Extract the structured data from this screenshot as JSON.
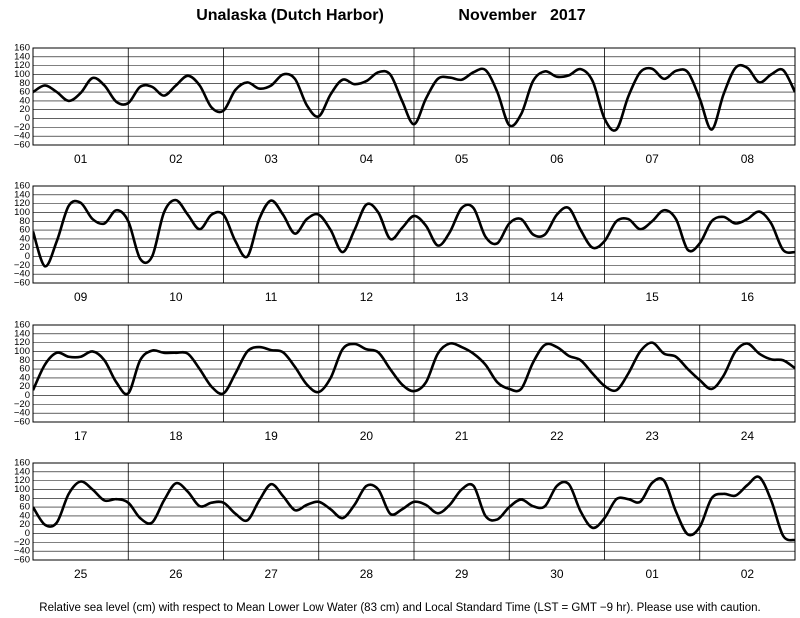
{
  "title": "Unalaska (Dutch Harbor)",
  "period": "November   2017",
  "footnote": "Relative sea level (cm) with respect to Mean Lower Low Water (83 cm) and Local Standard Time (LST = GMT −9 hr). Please use with caution.",
  "chart_data": [
    {
      "type": "line",
      "color": "#000000",
      "grid": true,
      "xlim": [
        0,
        192
      ],
      "ylim": [
        -60,
        160
      ],
      "yticks": [
        {
          "value": -60,
          "label": "−60"
        },
        {
          "value": -40,
          "label": "−40"
        },
        {
          "value": -20,
          "label": "−20"
        },
        0,
        20,
        40,
        60,
        80,
        100,
        120,
        140,
        160
      ],
      "xticks": [
        {
          "value": 12,
          "label": "01"
        },
        {
          "value": 36,
          "label": "02"
        },
        {
          "value": 60,
          "label": "03"
        },
        {
          "value": 84,
          "label": "04"
        },
        {
          "value": 108,
          "label": "05"
        },
        {
          "value": 132,
          "label": "06"
        },
        {
          "value": 156,
          "label": "07"
        },
        {
          "value": 180,
          "label": "08"
        }
      ],
      "x": [
        0,
        3,
        6,
        9,
        12,
        15,
        18,
        21,
        24,
        27,
        30,
        33,
        36,
        39,
        42,
        45,
        48,
        51,
        54,
        57,
        60,
        63,
        66,
        69,
        72,
        75,
        78,
        81,
        84,
        87,
        90,
        93,
        96,
        99,
        102,
        105,
        108,
        111,
        114,
        117,
        120,
        123,
        126,
        129,
        132,
        135,
        138,
        141,
        144,
        147,
        150,
        153,
        156,
        159,
        162,
        165,
        168,
        171,
        174,
        177,
        180,
        183,
        186,
        189,
        192
      ],
      "values": [
        60,
        75,
        60,
        40,
        58,
        92,
        75,
        38,
        35,
        72,
        72,
        52,
        75,
        97,
        75,
        25,
        18,
        65,
        82,
        68,
        75,
        100,
        90,
        30,
        5,
        55,
        88,
        78,
        85,
        105,
        100,
        40,
        -13,
        45,
        90,
        93,
        88,
        105,
        110,
        60,
        -15,
        10,
        85,
        107,
        95,
        98,
        112,
        85,
        0,
        -25,
        50,
        105,
        113,
        90,
        108,
        105,
        45,
        -25,
        55,
        115,
        115,
        82,
        100,
        110,
        60
      ]
    },
    {
      "type": "line",
      "color": "#000000",
      "grid": true,
      "xlim": [
        0,
        192
      ],
      "ylim": [
        -60,
        160
      ],
      "yticks": [
        {
          "value": -60,
          "label": "−60"
        },
        {
          "value": -40,
          "label": "−40"
        },
        {
          "value": -20,
          "label": "−20"
        },
        0,
        20,
        40,
        60,
        80,
        100,
        120,
        140,
        160
      ],
      "xticks": [
        {
          "value": 12,
          "label": "09"
        },
        {
          "value": 36,
          "label": "10"
        },
        {
          "value": 60,
          "label": "11"
        },
        {
          "value": 84,
          "label": "12"
        },
        {
          "value": 108,
          "label": "13"
        },
        {
          "value": 132,
          "label": "14"
        },
        {
          "value": 156,
          "label": "15"
        },
        {
          "value": 180,
          "label": "16"
        }
      ],
      "x": [
        0,
        3,
        6,
        9,
        12,
        15,
        18,
        21,
        24,
        27,
        30,
        33,
        36,
        39,
        42,
        45,
        48,
        51,
        54,
        57,
        60,
        63,
        66,
        69,
        72,
        75,
        78,
        81,
        84,
        87,
        90,
        93,
        96,
        99,
        102,
        105,
        108,
        111,
        114,
        117,
        120,
        123,
        126,
        129,
        132,
        135,
        138,
        141,
        144,
        147,
        150,
        153,
        156,
        159,
        162,
        165,
        168,
        171,
        174,
        177,
        180,
        183,
        186,
        189,
        192
      ],
      "values": [
        57,
        -22,
        35,
        115,
        122,
        85,
        75,
        105,
        80,
        -5,
        0,
        100,
        128,
        95,
        62,
        95,
        95,
        35,
        0,
        85,
        127,
        95,
        52,
        85,
        95,
        60,
        10,
        60,
        118,
        100,
        40,
        65,
        92,
        70,
        25,
        55,
        110,
        110,
        45,
        30,
        75,
        85,
        50,
        50,
        95,
        110,
        60,
        20,
        35,
        80,
        85,
        62,
        80,
        105,
        85,
        15,
        30,
        80,
        90,
        75,
        85,
        102,
        75,
        15,
        10
      ]
    },
    {
      "type": "line",
      "color": "#000000",
      "grid": true,
      "xlim": [
        0,
        192
      ],
      "ylim": [
        -60,
        160
      ],
      "yticks": [
        {
          "value": -60,
          "label": "−60"
        },
        {
          "value": -40,
          "label": "−40"
        },
        {
          "value": -20,
          "label": "−20"
        },
        0,
        20,
        40,
        60,
        80,
        100,
        120,
        140,
        160
      ],
      "xticks": [
        {
          "value": 12,
          "label": "17"
        },
        {
          "value": 36,
          "label": "18"
        },
        {
          "value": 60,
          "label": "19"
        },
        {
          "value": 84,
          "label": "20"
        },
        {
          "value": 108,
          "label": "21"
        },
        {
          "value": 132,
          "label": "22"
        },
        {
          "value": 156,
          "label": "23"
        },
        {
          "value": 180,
          "label": "24"
        }
      ],
      "x": [
        0,
        3,
        6,
        9,
        12,
        15,
        18,
        21,
        24,
        27,
        30,
        33,
        36,
        39,
        42,
        45,
        48,
        51,
        54,
        57,
        60,
        63,
        66,
        69,
        72,
        75,
        78,
        81,
        84,
        87,
        90,
        93,
        96,
        99,
        102,
        105,
        108,
        111,
        114,
        117,
        120,
        123,
        126,
        129,
        132,
        135,
        138,
        141,
        144,
        147,
        150,
        153,
        156,
        159,
        162,
        165,
        168,
        171,
        174,
        177,
        180,
        183,
        186,
        189,
        192
      ],
      "values": [
        12,
        70,
        97,
        88,
        88,
        100,
        80,
        30,
        5,
        80,
        102,
        97,
        97,
        95,
        60,
        20,
        5,
        50,
        100,
        110,
        103,
        98,
        65,
        25,
        8,
        40,
        105,
        117,
        105,
        98,
        60,
        25,
        10,
        30,
        95,
        118,
        110,
        95,
        70,
        30,
        15,
        15,
        75,
        115,
        110,
        90,
        80,
        50,
        22,
        12,
        50,
        100,
        120,
        95,
        88,
        60,
        35,
        15,
        45,
        100,
        118,
        95,
        82,
        80,
        62
      ]
    },
    {
      "type": "line",
      "color": "#000000",
      "grid": true,
      "xlim": [
        0,
        192
      ],
      "ylim": [
        -60,
        160
      ],
      "yticks": [
        {
          "value": -60,
          "label": "−60"
        },
        {
          "value": -40,
          "label": "−40"
        },
        {
          "value": -20,
          "label": "−20"
        },
        0,
        20,
        40,
        60,
        80,
        100,
        120,
        140,
        160
      ],
      "xticks": [
        {
          "value": 12,
          "label": "25"
        },
        {
          "value": 36,
          "label": "26"
        },
        {
          "value": 60,
          "label": "27"
        },
        {
          "value": 84,
          "label": "28"
        },
        {
          "value": 108,
          "label": "29"
        },
        {
          "value": 132,
          "label": "30"
        },
        {
          "value": 156,
          "label": "01"
        },
        {
          "value": 180,
          "label": "02"
        }
      ],
      "x": [
        0,
        3,
        6,
        9,
        12,
        15,
        18,
        21,
        24,
        27,
        30,
        33,
        36,
        39,
        42,
        45,
        48,
        51,
        54,
        57,
        60,
        63,
        66,
        69,
        72,
        75,
        78,
        81,
        84,
        87,
        90,
        93,
        96,
        99,
        102,
        105,
        108,
        111,
        114,
        117,
        120,
        123,
        126,
        129,
        132,
        135,
        138,
        141,
        144,
        147,
        150,
        153,
        156,
        159,
        162,
        165,
        168,
        171,
        174,
        177,
        180,
        183,
        186,
        189,
        192
      ],
      "values": [
        60,
        20,
        25,
        90,
        118,
        100,
        75,
        78,
        70,
        35,
        25,
        75,
        114,
        95,
        62,
        70,
        70,
        45,
        30,
        75,
        112,
        85,
        53,
        65,
        72,
        55,
        35,
        65,
        108,
        100,
        45,
        55,
        72,
        65,
        46,
        65,
        100,
        108,
        40,
        32,
        60,
        77,
        62,
        62,
        108,
        112,
        50,
        13,
        35,
        78,
        78,
        72,
        115,
        120,
        50,
        -2,
        15,
        80,
        90,
        86,
        110,
        128,
        75,
        -5,
        -15
      ]
    }
  ]
}
